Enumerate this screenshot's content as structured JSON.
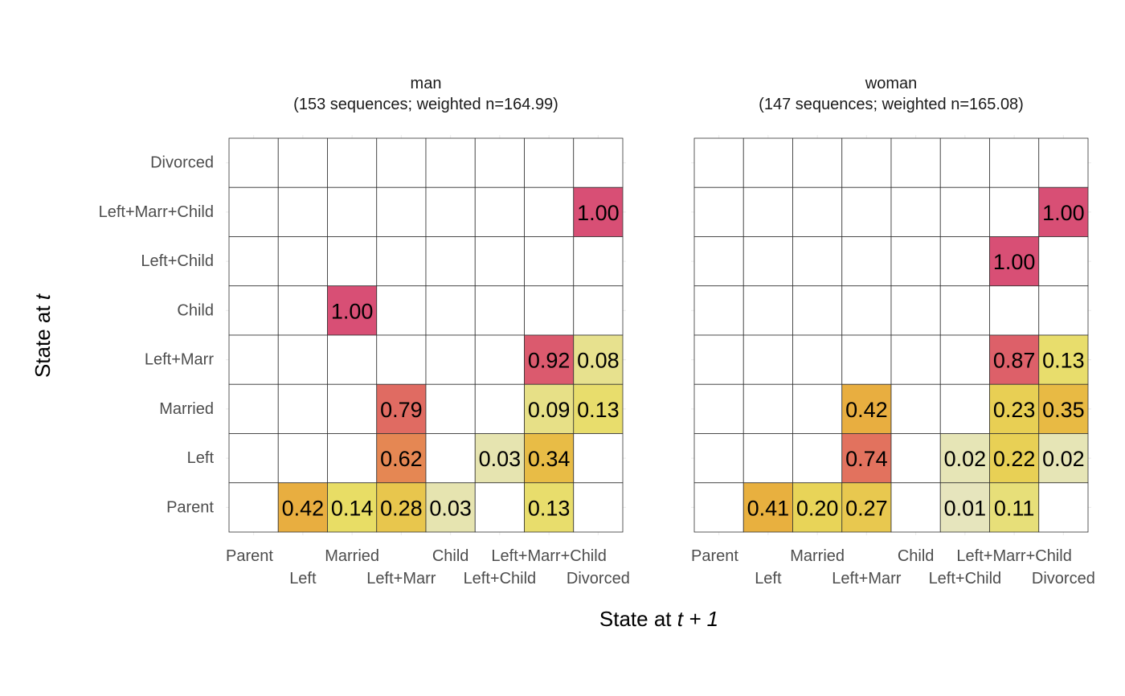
{
  "chart_data": {
    "type": "heatmap",
    "xlabel": {
      "text": "State at ",
      "italic": "t + 1"
    },
    "ylabel": {
      "text": "State at ",
      "italic": "t"
    },
    "states": [
      "Parent",
      "Left",
      "Married",
      "Left+Marr",
      "Child",
      "Left+Child",
      "Left+Marr+Child",
      "Divorced"
    ],
    "grid": true,
    "legend": "none",
    "color_scale": {
      "low": "#e6e6c4",
      "mid_low": "#e8dc5e",
      "mid": "#e8b23e",
      "mid_high": "#e4775a",
      "high": "#d84f75"
    },
    "facets": [
      {
        "title_line1": "man",
        "title_line2": "(153 sequences; weighted n=164.99)",
        "cells": [
          {
            "from": "Parent",
            "to": "Left",
            "value": 0.42,
            "label": "0.42"
          },
          {
            "from": "Parent",
            "to": "Married",
            "value": 0.14,
            "label": "0.14"
          },
          {
            "from": "Parent",
            "to": "Left+Marr",
            "value": 0.28,
            "label": "0.28"
          },
          {
            "from": "Parent",
            "to": "Child",
            "value": 0.03,
            "label": "0.03"
          },
          {
            "from": "Parent",
            "to": "Left+Marr+Child",
            "value": 0.13,
            "label": "0.13"
          },
          {
            "from": "Left",
            "to": "Left+Marr",
            "value": 0.62,
            "label": "0.62"
          },
          {
            "from": "Left",
            "to": "Left+Child",
            "value": 0.03,
            "label": "0.03"
          },
          {
            "from": "Left",
            "to": "Left+Marr+Child",
            "value": 0.34,
            "label": "0.34"
          },
          {
            "from": "Married",
            "to": "Left+Marr",
            "value": 0.79,
            "label": "0.79"
          },
          {
            "from": "Married",
            "to": "Left+Marr+Child",
            "value": 0.09,
            "label": "0.09"
          },
          {
            "from": "Married",
            "to": "Divorced",
            "value": 0.13,
            "label": "0.13"
          },
          {
            "from": "Left+Marr",
            "to": "Left+Marr+Child",
            "value": 0.92,
            "label": "0.92"
          },
          {
            "from": "Left+Marr",
            "to": "Divorced",
            "value": 0.08,
            "label": "0.08"
          },
          {
            "from": "Child",
            "to": "Married",
            "value": 1.0,
            "label": "1.00"
          },
          {
            "from": "Left+Marr+Child",
            "to": "Divorced",
            "value": 1.0,
            "label": "1.00"
          }
        ]
      },
      {
        "title_line1": "woman",
        "title_line2": "(147 sequences; weighted n=165.08)",
        "cells": [
          {
            "from": "Parent",
            "to": "Left",
            "value": 0.41,
            "label": "0.41"
          },
          {
            "from": "Parent",
            "to": "Married",
            "value": 0.2,
            "label": "0.20"
          },
          {
            "from": "Parent",
            "to": "Left+Marr",
            "value": 0.27,
            "label": "0.27"
          },
          {
            "from": "Parent",
            "to": "Left+Child",
            "value": 0.01,
            "label": "0.01"
          },
          {
            "from": "Parent",
            "to": "Left+Marr+Child",
            "value": 0.11,
            "label": "0.11"
          },
          {
            "from": "Left",
            "to": "Left+Marr",
            "value": 0.74,
            "label": "0.74"
          },
          {
            "from": "Left",
            "to": "Left+Child",
            "value": 0.02,
            "label": "0.02"
          },
          {
            "from": "Left",
            "to": "Left+Marr+Child",
            "value": 0.22,
            "label": "0.22"
          },
          {
            "from": "Left",
            "to": "Divorced",
            "value": 0.02,
            "label": "0.02"
          },
          {
            "from": "Married",
            "to": "Left+Marr",
            "value": 0.42,
            "label": "0.42"
          },
          {
            "from": "Married",
            "to": "Left+Marr+Child",
            "value": 0.23,
            "label": "0.23"
          },
          {
            "from": "Married",
            "to": "Divorced",
            "value": 0.35,
            "label": "0.35"
          },
          {
            "from": "Left+Marr",
            "to": "Left+Marr+Child",
            "value": 0.87,
            "label": "0.87"
          },
          {
            "from": "Left+Marr",
            "to": "Divorced",
            "value": 0.13,
            "label": "0.13"
          },
          {
            "from": "Left+Child",
            "to": "Left+Marr+Child",
            "value": 1.0,
            "label": "1.00"
          },
          {
            "from": "Left+Marr+Child",
            "to": "Divorced",
            "value": 1.0,
            "label": "1.00"
          }
        ]
      }
    ]
  }
}
